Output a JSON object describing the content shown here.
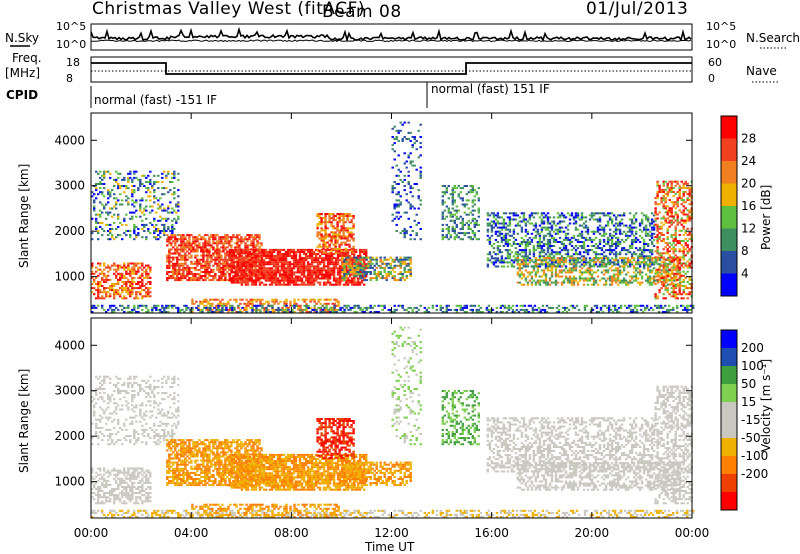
{
  "header": {
    "title": "Christmas Valley West (fitACF)",
    "beam": "Beam 08",
    "date": "01/Jul/2013"
  },
  "top_panels": {
    "nsky_label": "N.Sky",
    "nsky_ticks": [
      "10^5",
      "10^0"
    ],
    "nsearch_label": "N.Search",
    "nsearch_ticks": [
      "10^5",
      "10^0"
    ],
    "freq_label_1": "Freq.",
    "freq_label_2": "[MHz]",
    "freq_ticks": [
      "18",
      "8"
    ],
    "nave_label": "Nave",
    "nave_ticks": [
      "60",
      "0"
    ],
    "cpid_label": "CPID",
    "cpid_segments": [
      "normal (fast) -151 IF",
      "normal (fast) 151 IF"
    ]
  },
  "colors": {
    "power_scale": [
      "#0000ff",
      "#2a4fa0",
      "#3f8f60",
      "#5fbf3f",
      "#f0b000",
      "#f08020",
      "#f04020",
      "#ff0000"
    ],
    "velocity_scale": [
      "#ff0000",
      "#f04000",
      "#ff8000",
      "#f0b000",
      "#c8c8c0",
      "#c8c8c0",
      "#7fd050",
      "#3f9f3f",
      "#1f4fb0",
      "#0000ff"
    ]
  },
  "chart_data": [
    {
      "type": "heatmap",
      "name": "power",
      "ylabel": "Slant Range [km]",
      "yticks": [
        "1000",
        "2000",
        "3000",
        "4000"
      ],
      "ylim": [
        200,
        4600
      ],
      "colorbar_label": "Power [dB]",
      "colorbar_ticks": [
        "4",
        "8",
        "12",
        "16",
        "20",
        "24",
        "28"
      ]
    },
    {
      "type": "heatmap",
      "name": "velocity",
      "ylabel": "Slant Range [km]",
      "yticks": [
        "1000",
        "2000",
        "3000",
        "4000"
      ],
      "ylim": [
        200,
        4600
      ],
      "colorbar_label": "Velocity [m s⁻¹]",
      "colorbar_ticks": [
        "200",
        "100",
        "50",
        "15",
        "-15",
        "-50",
        "-100",
        "-200"
      ]
    }
  ],
  "xaxis": {
    "label": "Time UT",
    "ticks": [
      "00:00",
      "04:00",
      "08:00",
      "12:00",
      "16:00",
      "20:00",
      "00:00"
    ]
  }
}
